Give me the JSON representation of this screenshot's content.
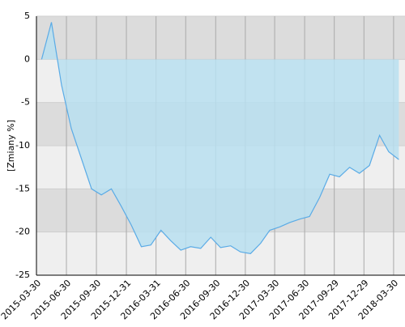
{
  "chart_data": {
    "type": "area",
    "y_label": "[Zmiany %]",
    "x": [
      "2015-04-15",
      "2015-05-15",
      "2015-06-15",
      "2015-07-15",
      "2015-08-15",
      "2015-09-15",
      "2015-10-15",
      "2015-11-15",
      "2015-12-15",
      "2016-01-15",
      "2016-02-15",
      "2016-03-15",
      "2016-04-15",
      "2016-05-15",
      "2016-06-15",
      "2016-07-15",
      "2016-08-15",
      "2016-09-15",
      "2016-10-15",
      "2016-11-15",
      "2016-12-15",
      "2017-01-15",
      "2017-02-15",
      "2017-03-15",
      "2017-04-15",
      "2017-05-15",
      "2017-06-15",
      "2017-07-15",
      "2017-08-15",
      "2017-09-15",
      "2017-10-15",
      "2017-11-15",
      "2017-12-15",
      "2018-01-15",
      "2018-02-15",
      "2018-03-15",
      "2018-04-15"
    ],
    "series": [
      {
        "color": "#5aabe6",
        "values": [
          0,
          4.3,
          -3,
          -8,
          -11.5,
          -15,
          -15.7,
          -15,
          -17,
          -19.2,
          -21.7,
          -21.5,
          -19.8,
          -21,
          -22.1,
          -21.7,
          -21.9,
          -20.6,
          -21.8,
          -21.6,
          -22.3,
          -22.5,
          -21.3,
          -19.8,
          -19.4,
          -18.9,
          -18.5,
          -18.2,
          -16,
          -13.3,
          -13.6,
          -12.5,
          -13.2,
          -12.3,
          -8.8,
          -10.7,
          -11.6
        ]
      }
    ],
    "fill_color": "#b9dff0",
    "xlim": [
      "2015-03-30",
      "2018-05-04"
    ],
    "xticks": [
      "2015-03-30",
      "2015-06-30",
      "2015-09-30",
      "2015-12-31",
      "2016-03-31",
      "2016-06-30",
      "2016-09-30",
      "2016-12-30",
      "2017-03-30",
      "2017-06-30",
      "2017-09-29",
      "2017-12-29",
      "2018-03-30"
    ],
    "ylim": [
      -25,
      5
    ],
    "yticks": [
      5,
      0,
      -5,
      -10,
      -15,
      -20,
      -25
    ],
    "grid": true
  }
}
